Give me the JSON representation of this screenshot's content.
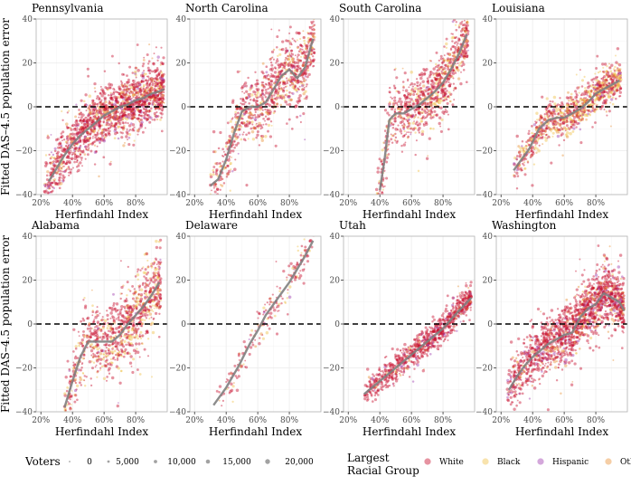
{
  "chart_data": {
    "type": "scatter",
    "layout": "facet-grid-2x4",
    "ylabel": "Fitted DAS–4.5 population error",
    "xlabel": "Herfindahl Index",
    "x_ticks": [
      "20%",
      "40%",
      "60%",
      "80%"
    ],
    "x_tick_values": [
      20,
      40,
      60,
      80
    ],
    "xlim": [
      17,
      100
    ],
    "y_ticks": [
      "40",
      "20",
      "0",
      "−20",
      "−40"
    ],
    "y_tick_values": [
      40,
      20,
      0,
      -20,
      -40
    ],
    "ylim": [
      -40,
      40
    ],
    "reference_line_y": 0,
    "colors": {
      "White": "#c8102e",
      "Black": "#f0c24a",
      "Hispanic": "#a03fb0",
      "Other": "#e8923a",
      "trend": "#7f7f7f",
      "reference": "#000000",
      "grid": "#ebebeb",
      "frame": "#b3b3b3"
    },
    "panels": [
      {
        "title": "Pennsylvania",
        "trend": {
          "x": [
            25,
            30,
            35,
            40,
            45,
            50,
            55,
            60,
            65,
            70,
            75,
            80,
            85,
            90,
            95,
            98
          ],
          "y": [
            -34,
            -28,
            -22,
            -17,
            -13,
            -10,
            -7,
            -4,
            -2,
            0,
            1,
            3,
            4,
            6,
            7,
            8
          ]
        },
        "point_count": 1700,
        "spread": 6,
        "x_range": [
          22,
          98
        ],
        "mix": [
          0.72,
          0.1,
          0.08,
          0.1
        ]
      },
      {
        "title": "North Carolina",
        "trend": {
          "x": [
            30,
            35,
            40,
            45,
            50,
            55,
            60,
            65,
            70,
            75,
            80,
            85,
            90,
            95
          ],
          "y": [
            -36,
            -33,
            -24,
            -12,
            -2,
            0,
            0,
            2,
            8,
            14,
            17,
            13,
            18,
            31
          ]
        },
        "point_count": 950,
        "spread": 7,
        "x_range": [
          30,
          96
        ],
        "mix": [
          0.7,
          0.2,
          0.04,
          0.06
        ]
      },
      {
        "title": "South Carolina",
        "trend": {
          "x": [
            40,
            43,
            46,
            50,
            55,
            60,
            65,
            70,
            75,
            80,
            85,
            90,
            95
          ],
          "y": [
            -38,
            -24,
            -6,
            -3,
            -3,
            -1,
            1,
            4,
            7,
            11,
            17,
            24,
            33
          ]
        },
        "point_count": 950,
        "spread": 7,
        "x_range": [
          38,
          96
        ],
        "mix": [
          0.7,
          0.22,
          0.03,
          0.05
        ]
      },
      {
        "title": "Louisiana",
        "trend": {
          "x": [
            28,
            32,
            38,
            44,
            50,
            55,
            60,
            65,
            70,
            75,
            80,
            85,
            90,
            95
          ],
          "y": [
            -29,
            -25,
            -19,
            -10,
            -6,
            -5,
            -5,
            -3,
            -1,
            2,
            6,
            8,
            10,
            12
          ]
        },
        "point_count": 1000,
        "spread": 4,
        "x_range": [
          28,
          96
        ],
        "mix": [
          0.5,
          0.35,
          0.05,
          0.1
        ]
      },
      {
        "title": "Alabama",
        "trend": {
          "x": [
            35,
            40,
            45,
            50,
            55,
            60,
            65,
            70,
            75,
            80,
            85,
            90,
            95
          ],
          "y": [
            -38,
            -26,
            -15,
            -8,
            -8,
            -8,
            -8,
            -5,
            0,
            4,
            8,
            13,
            19
          ]
        },
        "point_count": 950,
        "spread": 8,
        "x_range": [
          35,
          96
        ],
        "mix": [
          0.66,
          0.28,
          0.02,
          0.04
        ]
      },
      {
        "title": "Delaware",
        "trend": {
          "x": [
            32,
            40,
            48,
            55,
            60,
            65,
            70,
            75,
            80,
            85,
            90,
            95
          ],
          "y": [
            -37,
            -29,
            -19,
            -9,
            -3,
            4,
            9,
            14,
            19,
            25,
            31,
            38
          ]
        },
        "point_count": 200,
        "spread": 4,
        "x_range": [
          32,
          96
        ],
        "mix": [
          0.72,
          0.18,
          0.05,
          0.05
        ]
      },
      {
        "title": "Utah",
        "trend": {
          "x": [
            30,
            40,
            50,
            60,
            70,
            80,
            90,
            98
          ],
          "y": [
            -32,
            -26,
            -20,
            -14,
            -8,
            -2,
            6,
            12
          ]
        },
        "point_count": 900,
        "spread": 3,
        "x_range": [
          30,
          98
        ],
        "mix": [
          0.86,
          0.02,
          0.07,
          0.05
        ]
      },
      {
        "title": "Washington",
        "trend": {
          "x": [
            25,
            30,
            35,
            40,
            45,
            50,
            55,
            60,
            65,
            70,
            75,
            80,
            85,
            90,
            95,
            98
          ],
          "y": [
            -30,
            -24,
            -19,
            -15,
            -12,
            -9,
            -7,
            -5,
            -4,
            3,
            7,
            9,
            14,
            12,
            10,
            6
          ]
        },
        "point_count": 1700,
        "spread": 6,
        "x_range": [
          24,
          98
        ],
        "mix": [
          0.74,
          0.04,
          0.1,
          0.12
        ]
      }
    ],
    "legend_size": {
      "title": "Voters",
      "entries": [
        "0",
        "5,000",
        "10,000",
        "15,000",
        "20,000"
      ]
    },
    "legend_color": {
      "title_line1": "Largest",
      "title_line2": "Racial Group",
      "entries": [
        "White",
        "Black",
        "Hispanic",
        "Other"
      ]
    }
  }
}
